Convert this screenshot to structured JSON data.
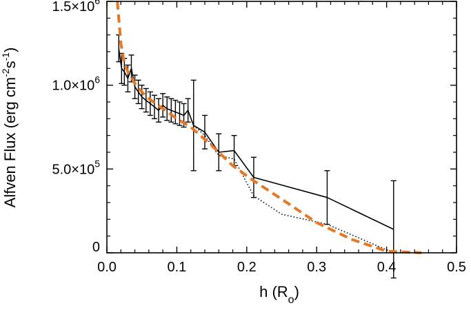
{
  "chart_data": {
    "type": "line",
    "xlabel": "h (R",
    "xlabel_sub": "o",
    "xlabel_close": ")",
    "ylabel": "Alfven Flux (erg cm",
    "ylabel_sup1": "-2",
    "ylabel_mid": "s",
    "ylabel_sup2": "-1",
    "ylabel_close": ")",
    "xlim": [
      0.0,
      0.5
    ],
    "ylim": [
      0,
      1500000
    ],
    "x_ticks": [
      {
        "value": 0.0,
        "label": "0.0"
      },
      {
        "value": 0.1,
        "label": "0.1"
      },
      {
        "value": 0.2,
        "label": "0.2"
      },
      {
        "value": 0.3,
        "label": "0.3"
      },
      {
        "value": 0.4,
        "label": "0.4"
      },
      {
        "value": 0.5,
        "label": "0.5"
      }
    ],
    "y_ticks": [
      {
        "value": 0,
        "mant": "0",
        "exp": ""
      },
      {
        "value": 500000,
        "mant": "5.0×10",
        "exp": "5"
      },
      {
        "value": 1000000,
        "mant": "1.0×10",
        "exp": "6"
      },
      {
        "value": 1500000,
        "mant": "1.5×10",
        "exp": "6"
      }
    ],
    "series": [
      {
        "style": "solid",
        "color": "#000000",
        "x": [
          0.017,
          0.021,
          0.025,
          0.03,
          0.035,
          0.04,
          0.045,
          0.05,
          0.056,
          0.062,
          0.068,
          0.074,
          0.08,
          0.086,
          0.092,
          0.098,
          0.104,
          0.11,
          0.116,
          0.124,
          0.14,
          0.16,
          0.182,
          0.21,
          0.315,
          0.41
        ],
        "y": [
          1220000,
          1100000,
          1080000,
          1040000,
          1100000,
          990000,
          960000,
          930000,
          910000,
          890000,
          870000,
          850000,
          880000,
          860000,
          850000,
          840000,
          830000,
          820000,
          850000,
          760000,
          720000,
          600000,
          610000,
          450000,
          330000,
          140000
        ],
        "errors": [
          80000,
          90000,
          80000,
          80000,
          80000,
          70000,
          70000,
          70000,
          70000,
          70000,
          70000,
          70000,
          70000,
          70000,
          70000,
          70000,
          70000,
          70000,
          70000,
          270000,
          100000,
          110000,
          90000,
          120000,
          160000,
          290000
        ]
      },
      {
        "style": "dotted",
        "color": "#000000",
        "x": [
          0.124,
          0.14,
          0.16,
          0.182,
          0.21,
          0.25,
          0.315,
          0.41
        ],
        "y": [
          760000,
          700000,
          580000,
          560000,
          340000,
          230000,
          170000,
          0
        ]
      },
      {
        "style": "dashed",
        "color": "#e87722",
        "x": [
          0.015,
          0.02,
          0.025,
          0.03,
          0.04,
          0.05,
          0.06,
          0.08,
          0.1,
          0.12,
          0.15,
          0.18,
          0.21,
          0.25,
          0.3,
          0.35,
          0.4,
          0.45
        ],
        "y": [
          1500000,
          1250000,
          1130000,
          1080000,
          1010000,
          960000,
          920000,
          860000,
          800000,
          750000,
          640000,
          520000,
          430000,
          320000,
          180000,
          80000,
          10000,
          0
        ]
      }
    ]
  }
}
